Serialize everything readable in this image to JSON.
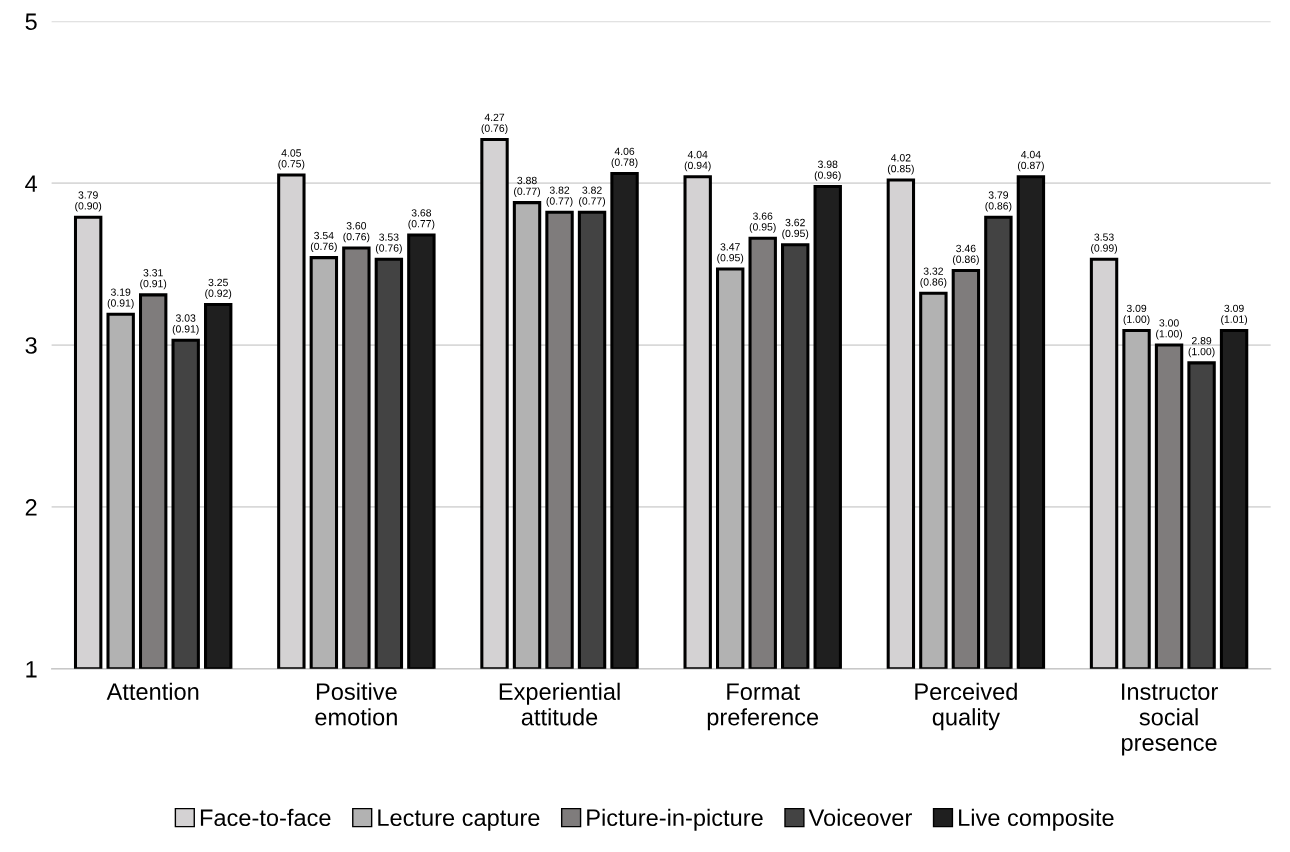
{
  "chart_data": {
    "type": "bar",
    "categories": [
      "Attention",
      "Positive\nemotion",
      "Experiential\nattitude",
      "Format\npreference",
      "Perceived\nquality",
      "Instructor\nsocial\npresence"
    ],
    "series": [
      {
        "name": "Face-to-face",
        "color": "#d4d2d3",
        "values": [
          3.79,
          4.05,
          4.27,
          4.04,
          4.02,
          3.53
        ],
        "value_labels": [
          "3.79\n(0.90)",
          "4.05\n(0.75)",
          "4.27\n(0.76)",
          "4.04\n(0.94)",
          "4.02\n(0.85)",
          "3.53\n(0.99)"
        ]
      },
      {
        "name": "Lecture capture",
        "color": "#b2b2b2",
        "values": [
          3.19,
          3.54,
          3.88,
          3.47,
          3.32,
          3.09
        ],
        "value_labels": [
          "3.19\n(0.91)",
          "3.54\n(0.76)",
          "3.88\n(0.77)",
          "3.47\n(0.95)",
          "3.32\n(0.86)",
          "3.09\n(1.00)"
        ]
      },
      {
        "name": "Picture-in-picture",
        "color": "#7f7c7c",
        "values": [
          3.31,
          3.6,
          3.82,
          3.66,
          3.46,
          3.0
        ],
        "value_labels": [
          "3.31\n(0.91)",
          "3.60\n(0.76)",
          "3.82\n(0.77)",
          "3.66\n(0.95)",
          "3.46\n(0.86)",
          "3.00\n(1.00)"
        ]
      },
      {
        "name": "Voiceover",
        "color": "#434343",
        "values": [
          3.03,
          3.53,
          3.82,
          3.62,
          3.79,
          2.89
        ],
        "value_labels": [
          "3.03\n(0.91)",
          "3.53\n(0.76)",
          "3.82\n(0.77)",
          "3.62\n(0.95)",
          "3.79\n(0.86)",
          "2.89\n(1.00)"
        ]
      },
      {
        "name": "Live composite",
        "color": "#1f1f1f",
        "values": [
          3.25,
          3.68,
          4.06,
          3.98,
          4.04,
          3.09
        ],
        "value_labels": [
          "3.25\n(0.92)",
          "3.68\n(0.77)",
          "4.06\n(0.78)",
          "3.98\n(0.96)",
          "4.04\n(0.87)",
          "3.09\n(1.01)"
        ]
      }
    ],
    "ylim": [
      1,
      5
    ],
    "yticks": [
      1,
      2,
      3,
      4,
      5
    ],
    "grid": "y",
    "legend": "bottom"
  }
}
